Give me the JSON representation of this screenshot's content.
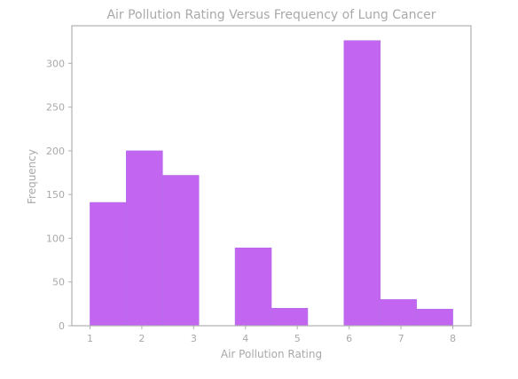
{
  "chart_data": {
    "type": "bar",
    "subtype": "histogram",
    "title": "Air Pollution Rating Versus Frequency of Lung Cancer",
    "xlabel": "Air Pollution Rating",
    "ylabel": "Frequency",
    "xlim": [
      0.65,
      8.35
    ],
    "ylim": [
      0,
      343
    ],
    "xticks": [
      1,
      2,
      3,
      4,
      5,
      6,
      7,
      8
    ],
    "yticks": [
      0,
      50,
      100,
      150,
      200,
      250,
      300
    ],
    "bins": [
      {
        "x0": 1.0,
        "x1": 1.7,
        "value": 141
      },
      {
        "x0": 1.7,
        "x1": 2.4,
        "value": 200
      },
      {
        "x0": 2.4,
        "x1": 3.1,
        "value": 172
      },
      {
        "x0": 3.1,
        "x1": 3.8,
        "value": 0
      },
      {
        "x0": 3.8,
        "x1": 4.5,
        "value": 89
      },
      {
        "x0": 4.5,
        "x1": 5.2,
        "value": 20
      },
      {
        "x0": 5.2,
        "x1": 5.9,
        "value": 0
      },
      {
        "x0": 5.9,
        "x1": 6.6,
        "value": 326
      },
      {
        "x0": 6.6,
        "x1": 7.3,
        "value": 30
      },
      {
        "x0": 7.3,
        "x1": 8.0,
        "value": 19
      }
    ],
    "bar_color": "#c266f2",
    "grid": false,
    "legend": "none"
  }
}
